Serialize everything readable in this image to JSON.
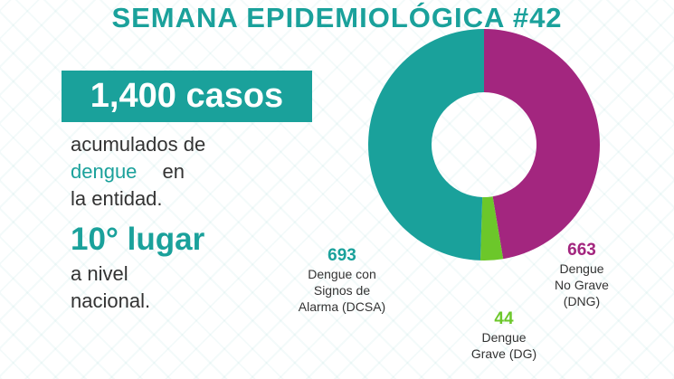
{
  "infographic": {
    "title": "SEMANA EPIDEMIOLÓGICA #42",
    "headline": "1,400 casos",
    "line1": "acumulados de",
    "highlight": "dengue",
    "line2_end": "en",
    "line3": "la entidad.",
    "rank": "10° lugar",
    "line4": "a nivel",
    "line5": "nacional."
  },
  "chart_data": {
    "type": "pie",
    "categories": [
      "Dengue No Grave (DNG)",
      "Dengue Grave (DG)",
      "Dengue con Signos de Alarma (DCSA)"
    ],
    "values": [
      663,
      44,
      693
    ],
    "colors": [
      "#a3267f",
      "#6cc72a",
      "#1aa19b"
    ]
  }
}
